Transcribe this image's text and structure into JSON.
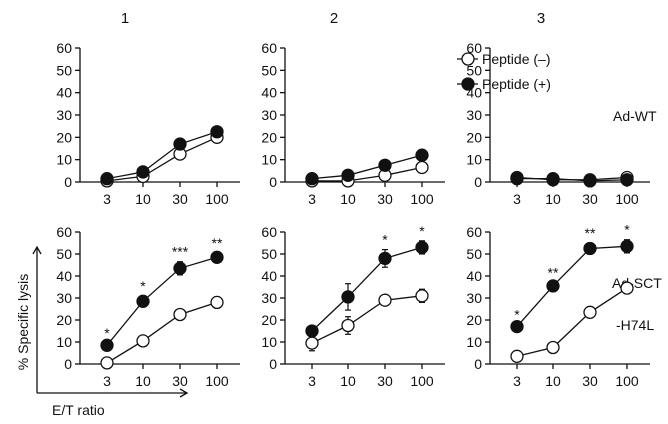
{
  "columns": [
    "1",
    "2",
    "3"
  ],
  "rows": [
    "Ad-WT",
    [
      "Ad-SCT",
      "-H74L"
    ]
  ],
  "y_axis_label": "% Specific lysis",
  "x_axis_label": "E/T ratio",
  "legend": [
    "Peptide (–)",
    "Peptide (+)"
  ],
  "colors": {
    "filled": "#111111",
    "open": "#ffffff",
    "stroke": "#111111"
  },
  "chart_data": [
    {
      "type": "line",
      "row": "Ad-WT",
      "column": "1",
      "categories": [
        "3",
        "10",
        "30",
        "100"
      ],
      "yticks": [
        0,
        10,
        20,
        30,
        40,
        50,
        60
      ],
      "ylim": [
        0,
        60
      ],
      "series": [
        {
          "name": "Peptide (–)",
          "values": [
            0.5,
            2.5,
            12.5,
            20
          ],
          "errors": [
            0,
            0,
            0,
            0
          ],
          "sig": [
            "",
            "",
            "",
            ""
          ]
        },
        {
          "name": "Peptide (+)",
          "values": [
            1.5,
            4.5,
            17,
            22.5
          ],
          "errors": [
            0,
            0,
            0,
            0
          ],
          "sig": [
            "",
            "",
            "",
            ""
          ]
        }
      ]
    },
    {
      "type": "line",
      "row": "Ad-WT",
      "column": "2",
      "categories": [
        "3",
        "10",
        "30",
        "100"
      ],
      "yticks": [
        0,
        10,
        20,
        30,
        40,
        50,
        60
      ],
      "ylim": [
        0,
        60
      ],
      "series": [
        {
          "name": "Peptide (–)",
          "values": [
            0.5,
            0.5,
            3,
            6.5
          ],
          "errors": [
            0,
            0,
            0,
            0
          ],
          "sig": [
            "",
            "",
            "",
            ""
          ]
        },
        {
          "name": "Peptide (+)",
          "values": [
            1.5,
            3,
            7.5,
            12
          ],
          "errors": [
            0,
            0,
            0,
            0
          ],
          "sig": [
            "",
            "",
            "",
            ""
          ]
        }
      ]
    },
    {
      "type": "line",
      "row": "Ad-WT",
      "column": "3",
      "categories": [
        "3",
        "10",
        "30",
        "100"
      ],
      "yticks": [
        0,
        10,
        20,
        30,
        40,
        50,
        60
      ],
      "ylim": [
        0,
        60
      ],
      "series": [
        {
          "name": "Peptide (–)",
          "values": [
            2,
            1,
            1,
            2
          ],
          "errors": [
            0,
            0,
            0,
            0
          ],
          "sig": [
            "",
            "",
            "",
            ""
          ]
        },
        {
          "name": "Peptide (+)",
          "values": [
            1.5,
            1.5,
            0.5,
            1
          ],
          "errors": [
            0,
            0,
            0,
            0
          ],
          "sig": [
            "",
            "",
            "",
            ""
          ]
        }
      ]
    },
    {
      "type": "line",
      "row": "Ad-SCT -H74L",
      "column": "1",
      "categories": [
        "3",
        "10",
        "30",
        "100"
      ],
      "yticks": [
        0,
        10,
        20,
        30,
        40,
        50,
        60
      ],
      "ylim": [
        0,
        60
      ],
      "series": [
        {
          "name": "Peptide (–)",
          "values": [
            0.5,
            10.5,
            22.5,
            28
          ],
          "errors": [
            0,
            2,
            2,
            2.5
          ],
          "sig": [
            "",
            "",
            "",
            ""
          ]
        },
        {
          "name": "Peptide (+)",
          "values": [
            8.5,
            28.5,
            43.5,
            48.5
          ],
          "errors": [
            1,
            2.5,
            3,
            2
          ],
          "sig": [
            "*",
            "*",
            "***",
            "**"
          ]
        }
      ]
    },
    {
      "type": "line",
      "row": "Ad-SCT -H74L",
      "column": "2",
      "categories": [
        "3",
        "10",
        "30",
        "100"
      ],
      "yticks": [
        0,
        10,
        20,
        30,
        40,
        50,
        60
      ],
      "ylim": [
        0,
        60
      ],
      "series": [
        {
          "name": "Peptide (–)",
          "values": [
            9.5,
            17.5,
            29,
            31
          ],
          "errors": [
            3.5,
            4,
            2,
            3
          ],
          "sig": [
            "",
            "",
            "",
            ""
          ]
        },
        {
          "name": "Peptide (+)",
          "values": [
            15,
            30.5,
            48,
            53
          ],
          "errors": [
            1.5,
            6,
            4,
            3
          ],
          "sig": [
            "",
            "",
            "*",
            "*"
          ]
        }
      ]
    },
    {
      "type": "line",
      "row": "Ad-SCT -H74L",
      "column": "3",
      "categories": [
        "3",
        "10",
        "30",
        "100"
      ],
      "yticks": [
        0,
        10,
        20,
        30,
        40,
        50,
        60
      ],
      "ylim": [
        0,
        60
      ],
      "series": [
        {
          "name": "Peptide (–)",
          "values": [
            3.5,
            7.5,
            23.5,
            34.5
          ],
          "errors": [
            0.5,
            2,
            2.5,
            2.5
          ],
          "sig": [
            "",
            "",
            "",
            ""
          ]
        },
        {
          "name": "Peptide (+)",
          "values": [
            17,
            35.5,
            52.5,
            53.5
          ],
          "errors": [
            1,
            1.5,
            2.5,
            3
          ],
          "sig": [
            "*",
            "**",
            "**",
            "*"
          ]
        }
      ]
    }
  ]
}
